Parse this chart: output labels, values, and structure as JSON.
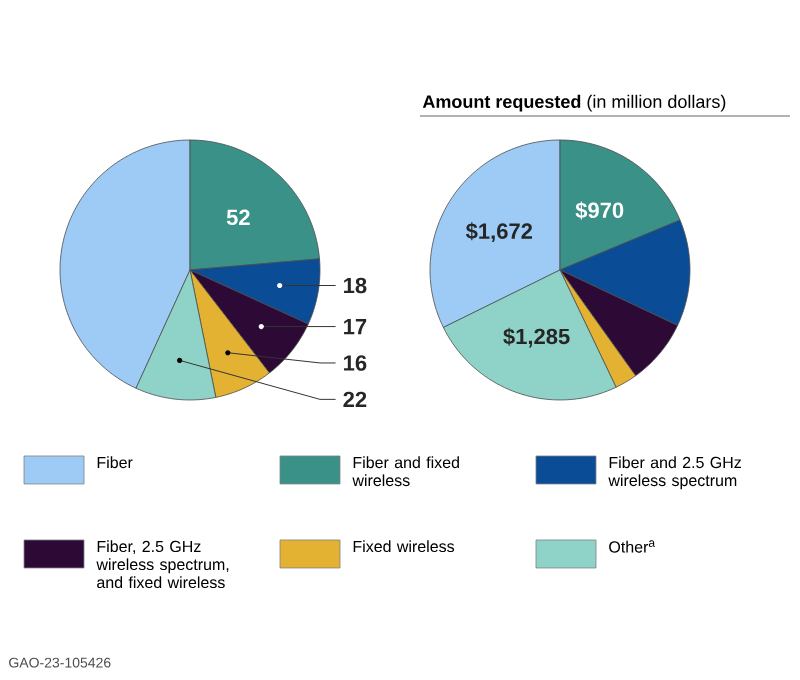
{
  "chart_data": [
    {
      "type": "pie",
      "categories": [
        null,
        null,
        null,
        null,
        null,
        null
      ],
      "values": [
        95,
        52,
        18,
        17,
        16,
        22
      ],
      "value_labels": [
        null,
        "52",
        "18",
        "17",
        "16",
        "22"
      ],
      "colors": [
        "#9dcbf5",
        "#3a9187",
        "#0a4d96",
        "#2c0a35",
        "#e3b232",
        "#8fd3c8"
      ]
    },
    {
      "type": "pie",
      "title": "**Amount requested** (in million dollars)",
      "categories": [
        "Fiber",
        "Fiber and fixed wireless",
        "Fiber and 2.5 GHz wireless spectrum",
        "Fiber, 2.5 GHz wireless spectrum, and fixed wireless",
        "Fixed wireless",
        "Other$^{a}$"
      ],
      "values": [
        1672,
        970,
        688,
        420,
        144,
        1285
      ],
      "value_labels": [
        "$1,672",
        "$970",
        null,
        null,
        null,
        "$1,285"
      ],
      "colors": [
        "#9dcbf5",
        "#3a9187",
        "#0a4d96",
        "#2c0a35",
        "#e3b232",
        "#8fd3c8"
      ],
      "legend": "bottom",
      "annotations": [
        "GAO-23-105426"
      ]
    }
  ]
}
